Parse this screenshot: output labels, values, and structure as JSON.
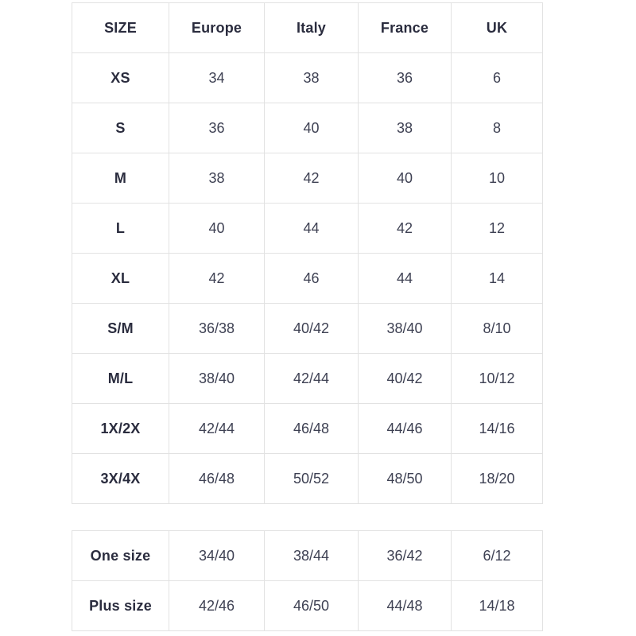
{
  "page": {
    "background": "#ffffff"
  },
  "colors": {
    "table_border": "#e2e2e2",
    "header_text": "#2a2c3e",
    "cell_text": "#3e4153"
  },
  "chart_data": [
    {
      "type": "table",
      "name": "international-size-conversion",
      "columns": [
        "SIZE",
        "Europe",
        "Italy",
        "France",
        "UK"
      ],
      "rows": [
        [
          "XS",
          "34",
          "38",
          "36",
          "6"
        ],
        [
          "S",
          "36",
          "40",
          "38",
          "8"
        ],
        [
          "M",
          "38",
          "42",
          "40",
          "10"
        ],
        [
          "L",
          "40",
          "44",
          "42",
          "12"
        ],
        [
          "XL",
          "42",
          "46",
          "44",
          "14"
        ],
        [
          "S/M",
          "36/38",
          "40/42",
          "38/40",
          "8/10"
        ],
        [
          "M/L",
          "38/40",
          "42/44",
          "40/42",
          "10/12"
        ],
        [
          "1X/2X",
          "42/44",
          "46/48",
          "44/46",
          "14/16"
        ],
        [
          "3X/4X",
          "46/48",
          "50/52",
          "48/50",
          "18/20"
        ]
      ]
    },
    {
      "type": "table",
      "name": "special-sizes",
      "columns": [],
      "rows": [
        [
          "One size",
          "34/40",
          "38/44",
          "36/42",
          "6/12"
        ],
        [
          "Plus size",
          "42/46",
          "46/50",
          "44/48",
          "14/18"
        ]
      ]
    }
  ]
}
